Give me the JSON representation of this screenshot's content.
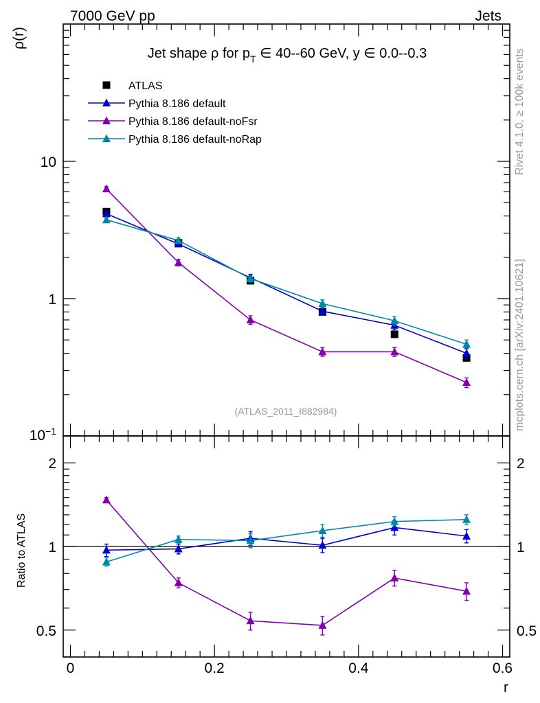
{
  "header": {
    "left": "7000 GeV pp",
    "right": "Jets"
  },
  "side_labels": {
    "top": "Rivet 4.1.0, ≥ 100k events",
    "bottom": "mcplots.cern.ch [arXiv:2401.10621]"
  },
  "colors": {
    "atlas": "#000000",
    "default": "#0000cc",
    "noFsr": "#8000b0",
    "noRap": "#0088aa"
  },
  "chart_data": [
    {
      "type": "line",
      "title": "Jet shape ρ for p_T ∈ 40--60 GeV, y ∈ 0.0--0.3",
      "title_parts": {
        "prefix": "Jet shape ρ for p",
        "sub": "T",
        "suffix": " ∈ 40--60 GeV, y ∈ 0.0--0.3"
      },
      "ylabel": "ρ(r)",
      "yscale": "log",
      "ylim": [
        0.1,
        100
      ],
      "xlim": [
        -0.01,
        0.61
      ],
      "y_tick_labels": [
        "10",
        "1"
      ],
      "y_min_label": {
        "base": "10",
        "exp": "−1"
      },
      "watermark": "(ATLAS_2011_I882984)",
      "legend_placement": "top-left",
      "x": [
        0.05,
        0.15,
        0.25,
        0.35,
        0.45,
        0.55
      ],
      "series": [
        {
          "name": "ATLAS",
          "key": "atlas",
          "marker": "square",
          "line": false,
          "values": [
            4.3,
            2.55,
            1.35,
            0.8,
            0.55,
            0.37
          ]
        },
        {
          "name": "Pythia 8.186 default",
          "key": "default",
          "marker": "triangle",
          "line": true,
          "values": [
            4.15,
            2.5,
            1.42,
            0.81,
            0.64,
            0.4
          ],
          "errors": [
            0.2,
            0.1,
            0.08,
            0.05,
            0.045,
            0.035
          ]
        },
        {
          "name": "Pythia 8.186 default-noFsr",
          "key": "noFsr",
          "marker": "triangle",
          "line": true,
          "values": [
            6.3,
            1.83,
            0.7,
            0.41,
            0.41,
            0.245
          ],
          "errors": [
            0.25,
            0.1,
            0.05,
            0.03,
            0.03,
            0.02
          ]
        },
        {
          "name": "Pythia 8.186 default-noRap",
          "key": "noRap",
          "marker": "triangle",
          "line": true,
          "values": [
            3.75,
            2.65,
            1.4,
            0.92,
            0.69,
            0.465
          ],
          "errors": [
            0.15,
            0.12,
            0.08,
            0.06,
            0.05,
            0.035
          ]
        }
      ]
    },
    {
      "type": "line",
      "ylabel": "Ratio to ATLAS",
      "xlabel": "r",
      "yscale": "log",
      "ylim": [
        0.4,
        2.5
      ],
      "xlim": [
        -0.01,
        0.61
      ],
      "x_tick_labels": [
        "0",
        "0.2",
        "0.4",
        "0.6"
      ],
      "y_tick_labels": [
        "2",
        "1",
        "0.5"
      ],
      "reference_line": 1,
      "x": [
        0.05,
        0.15,
        0.25,
        0.35,
        0.45,
        0.55
      ],
      "series": [
        {
          "name": "Pythia 8.186 default",
          "key": "default",
          "values": [
            0.97,
            0.98,
            1.07,
            1.01,
            1.17,
            1.09
          ],
          "errors": [
            0.05,
            0.04,
            0.06,
            0.06,
            0.07,
            0.06
          ]
        },
        {
          "name": "Pythia 8.186 default-noFsr",
          "key": "noFsr",
          "values": [
            1.47,
            0.74,
            0.54,
            0.52,
            0.77,
            0.69
          ],
          "errors": [
            0.03,
            0.03,
            0.04,
            0.04,
            0.05,
            0.05
          ]
        },
        {
          "name": "Pythia 8.186 default-noRap",
          "key": "noRap",
          "values": [
            0.88,
            1.06,
            1.05,
            1.14,
            1.23,
            1.25
          ],
          "errors": [
            0.03,
            0.03,
            0.06,
            0.06,
            0.05,
            0.05
          ]
        }
      ]
    }
  ]
}
